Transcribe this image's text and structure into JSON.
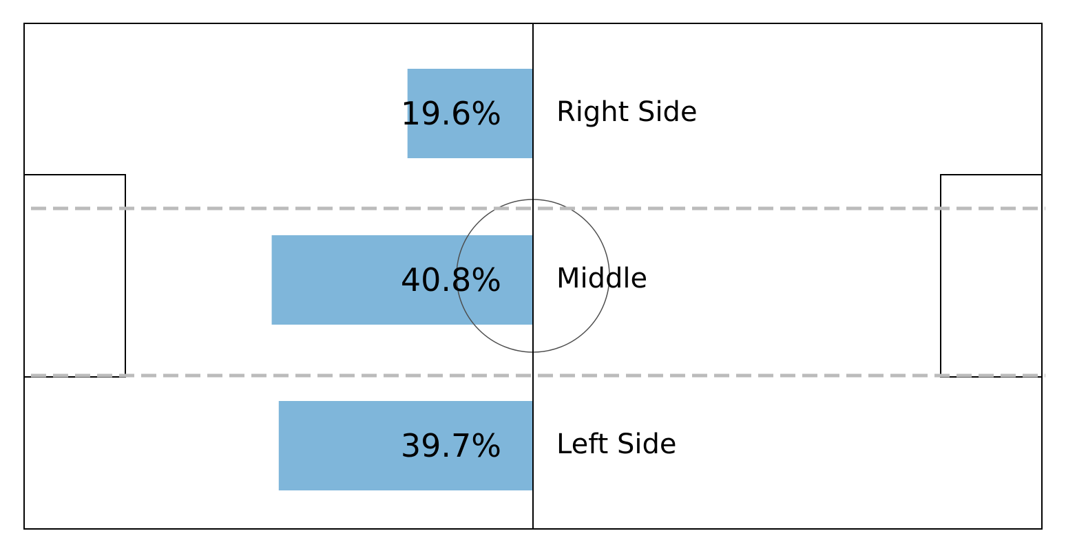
{
  "chart_data": {
    "type": "bar",
    "orientation": "horizontal",
    "background": "football-pitch",
    "categories": [
      "Right Side",
      "Middle",
      "Left Side"
    ],
    "values": [
      19.6,
      40.8,
      39.7
    ],
    "value_labels": [
      "19.6%",
      "40.8%",
      "39.7%"
    ],
    "bar_color": "#7fb6da",
    "zone_divider_color": "#bbbbbb",
    "title": "",
    "xlabel": "",
    "ylabel": ""
  }
}
